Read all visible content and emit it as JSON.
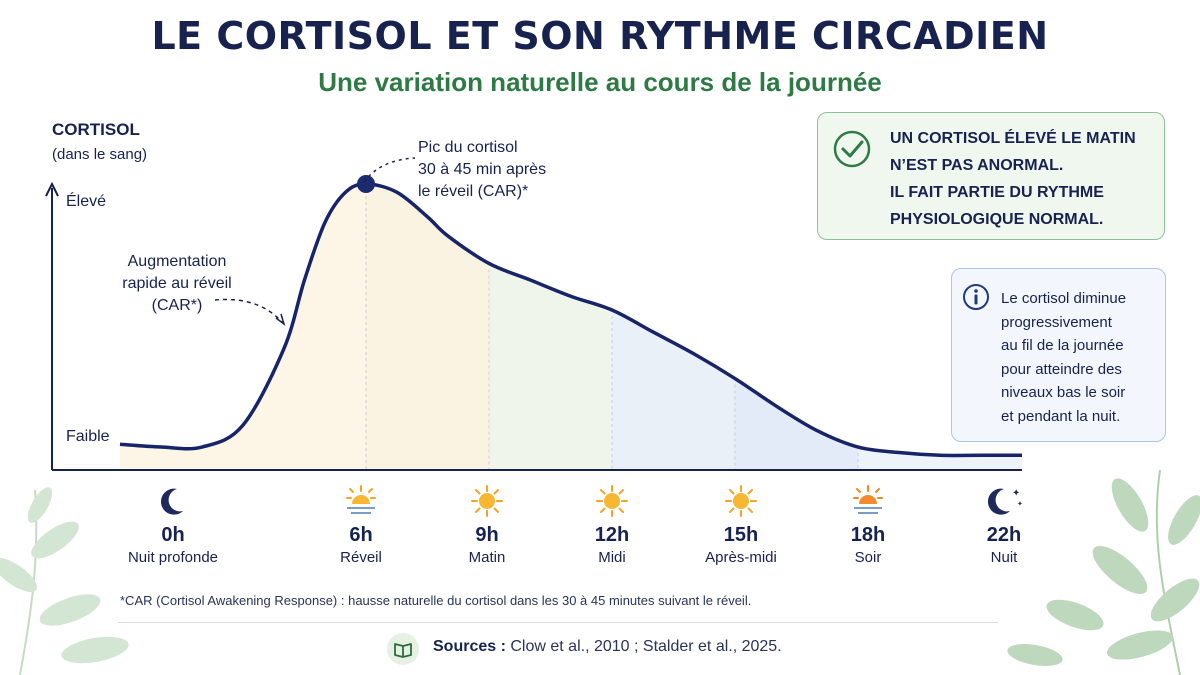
{
  "header": {
    "title": "LE CORTISOL ET SON RYTHME CIRCADIEN",
    "subtitle": "Une variation naturelle au cours de la journée"
  },
  "chart_data": {
    "type": "area",
    "ylabel": "CORTISOL",
    "ylabel_sub": "(dans le sang)",
    "y_levels": [
      "Élevé",
      "Faible"
    ],
    "x_ticks": [
      {
        "value": 0,
        "label": "0h",
        "name": "Nuit profonde",
        "icon": "moon-icon"
      },
      {
        "value": 6,
        "label": "6h",
        "name": "Réveil",
        "icon": "sunrise-icon"
      },
      {
        "value": 9,
        "label": "9h",
        "name": "Matin",
        "icon": "sun-icon"
      },
      {
        "value": 12,
        "label": "12h",
        "name": "Midi",
        "icon": "sun-icon"
      },
      {
        "value": 15,
        "label": "15h",
        "name": "Après-midi",
        "icon": "sun-icon"
      },
      {
        "value": 18,
        "label": "18h",
        "name": "Soir",
        "icon": "sunset-icon"
      },
      {
        "value": 22,
        "label": "22h",
        "name": "Nuit",
        "icon": "moon-stars-icon"
      }
    ],
    "xlim": [
      0,
      22
    ],
    "ylim": [
      0,
      100
    ],
    "series": [
      {
        "x": [
          0,
          1,
          2,
          3,
          4,
          4.5,
          5,
          5.5,
          6,
          6.75,
          7.5,
          8,
          9,
          10,
          11,
          12,
          13,
          14,
          15,
          16,
          17,
          18,
          19,
          20,
          21,
          22
        ],
        "y": [
          5,
          4,
          4,
          12,
          40,
          65,
          86,
          97,
          100,
          97,
          88,
          81,
          71,
          65,
          59,
          54,
          46,
          38,
          29,
          19,
          10,
          4,
          2,
          1,
          1,
          1
        ]
      }
    ],
    "annotations": {
      "peak": "Pic du cortisol\n30 à 45 min après\nle réveil (CAR)*",
      "rise": "Augmentation\nrapide au réveil\n(CAR*)"
    },
    "grid": false,
    "colors": {
      "line": "#17246a",
      "peak_marker": "#1c2a6e"
    }
  },
  "callouts": {
    "green_box": {
      "lines": [
        "UN CORTISOL ÉLEVÉ LE MATIN",
        "N’EST PAS ANORMAL.",
        "IL FAIT PARTIE DU RYTHME",
        "PHYSIOLOGIQUE NORMAL."
      ],
      "icon": "check-circle-icon"
    },
    "blue_box": {
      "lines": [
        "Le cortisol diminue",
        "progressivement",
        "au fil de la journée",
        "pour atteindre des",
        "niveaux bas le soir",
        "et pendant la nuit."
      ],
      "icon": "info-icon"
    }
  },
  "footer": {
    "footnote": "*CAR (Cortisol Awakening Response) : hausse naturelle du cortisol dans les 30 à 45 minutes suivant le réveil.",
    "sources_label": "Sources :",
    "sources_text": "Clow et al., 2010 ; Stalder  et al., 2025.",
    "sources_icon": "book-icon"
  }
}
